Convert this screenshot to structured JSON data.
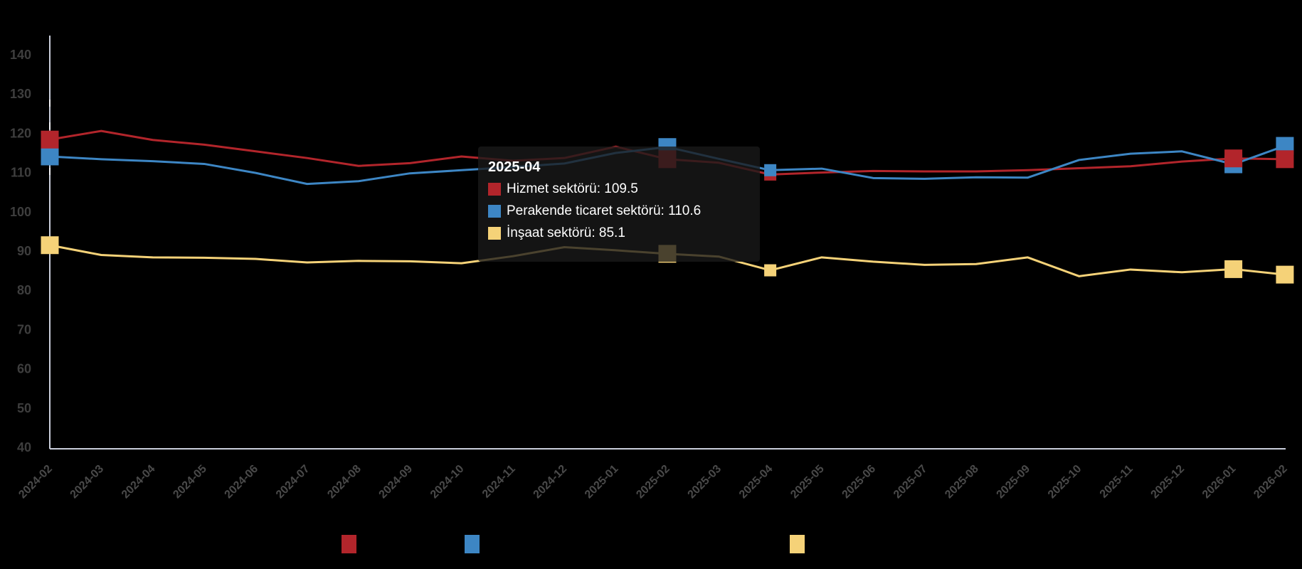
{
  "chart_data": {
    "type": "line",
    "title": "",
    "x": [
      "2024-02",
      "2024-03",
      "2024-04",
      "2024-05",
      "2024-06",
      "2024-07",
      "2024-08",
      "2024-09",
      "2024-10",
      "2024-11",
      "2024-12",
      "2025-01",
      "2025-02",
      "2025-03",
      "2025-04",
      "2025-05",
      "2025-06",
      "2025-07",
      "2025-08",
      "2025-09",
      "2025-10",
      "2025-11",
      "2025-12",
      "2026-01",
      "2026-02"
    ],
    "series": [
      {
        "name": "Hizmet sektörü",
        "color": "#b2252b",
        "values": [
          118.4,
          120.6,
          118.3,
          117.1,
          115.4,
          113.7,
          111.7,
          112.4,
          114.1,
          113.0,
          113.7,
          116.6,
          113.4,
          112.5,
          109.5,
          110.0,
          110.4,
          110.3,
          110.3,
          110.6,
          111.1,
          111.6,
          112.8,
          113.6,
          113.4
        ]
      },
      {
        "name": "Perakende ticaret sektörü",
        "color": "#3d86c4",
        "values": [
          114.1,
          113.4,
          112.9,
          112.2,
          109.9,
          107.1,
          107.8,
          109.8,
          110.6,
          111.4,
          112.3,
          115.0,
          116.5,
          113.5,
          110.6,
          111.0,
          108.6,
          108.4,
          108.8,
          108.7,
          113.2,
          114.8,
          115.4,
          112.1,
          116.8
        ]
      },
      {
        "name": "İnşaat sektörü",
        "color": "#f5d278",
        "values": [
          91.5,
          89.0,
          88.4,
          88.3,
          88.0,
          87.1,
          87.5,
          87.4,
          86.9,
          88.7,
          91.0,
          90.2,
          89.3,
          88.6,
          85.1,
          88.4,
          87.3,
          86.5,
          86.7,
          88.4,
          83.6,
          85.3,
          84.6,
          85.4,
          84.0
        ]
      }
    ],
    "ylim": [
      40,
      140
    ],
    "y_ticks": [
      40,
      50,
      60,
      70,
      80,
      90,
      100,
      110,
      120,
      130,
      140
    ],
    "grid": "off",
    "legend_position": "bottom",
    "marker_indices": [
      0,
      12,
      23,
      24
    ],
    "hover_index": 14
  },
  "tooltip": {
    "header": "2025-04",
    "separator": ": ",
    "items": [
      {
        "label": "Hizmet sektörü",
        "value": "109.5",
        "color": "#b2252b"
      },
      {
        "label": "Perakende ticaret sektörü",
        "value": "110.6",
        "color": "#3d86c4"
      },
      {
        "label": "İnşaat sektörü",
        "value": "85.1",
        "color": "#f5d278"
      }
    ]
  },
  "legend": {
    "items": [
      {
        "label": "Hizmet sektörü",
        "color": "#b2252b"
      },
      {
        "label": "Perakende ticaret sektörü",
        "color": "#3d86c4"
      },
      {
        "label": "İnşaat sektörü",
        "color": "#f5d278"
      }
    ],
    "label_color": "#000000"
  },
  "colors": {
    "background": "#000000",
    "axis_line": "#c9cedb",
    "y_label": "#3e3e3e",
    "x_label": "#4a4a4a",
    "pointer_dash": "#f2f2f6"
  }
}
